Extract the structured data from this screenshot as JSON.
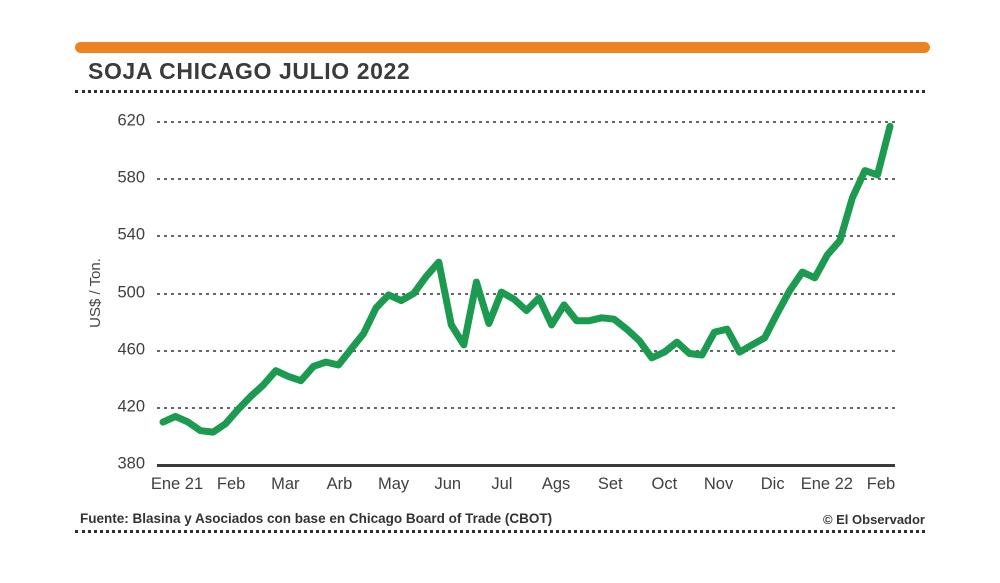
{
  "poster": {
    "title": "SOJA CHICAGO JULIO 2022",
    "source": "Fuente: Blasina y Asociados con base en Chicago Board of Trade (CBOT)",
    "credit": "© El Observador",
    "accent_color": "#ee8223"
  },
  "chart_data": {
    "type": "line",
    "title": "SOJA CHICAGO JULIO 2022",
    "xlabel": "",
    "ylabel": "US$ / Ton.",
    "ylim": [
      380,
      620
    ],
    "yticks": [
      380,
      420,
      460,
      500,
      540,
      580,
      620
    ],
    "categories": [
      "Ene 21",
      "Feb",
      "Mar",
      "Arb",
      "May",
      "Jun",
      "Jul",
      "Ags",
      "Set",
      "Oct",
      "Nov",
      "Dic",
      "Ene 22",
      "Feb"
    ],
    "grid": "horizontal-dotted",
    "legend": "none",
    "line_color": "#1b9a50",
    "series": [
      {
        "name": "Soja Chicago Julio 2022",
        "unit": "US$ / Ton.",
        "cadence": "weekly",
        "values": [
          410,
          414,
          410,
          404,
          403,
          409,
          419,
          428,
          436,
          446,
          442,
          439,
          449,
          452,
          450,
          461,
          472,
          490,
          499,
          495,
          500,
          512,
          522,
          478,
          464,
          508,
          479,
          501,
          496,
          488,
          497,
          478,
          492,
          481,
          481,
          483,
          482,
          475,
          467,
          455,
          459,
          466,
          458,
          457,
          473,
          475,
          459,
          464,
          469,
          486,
          502,
          515,
          511,
          527,
          537,
          567,
          586,
          583,
          617
        ]
      }
    ]
  }
}
